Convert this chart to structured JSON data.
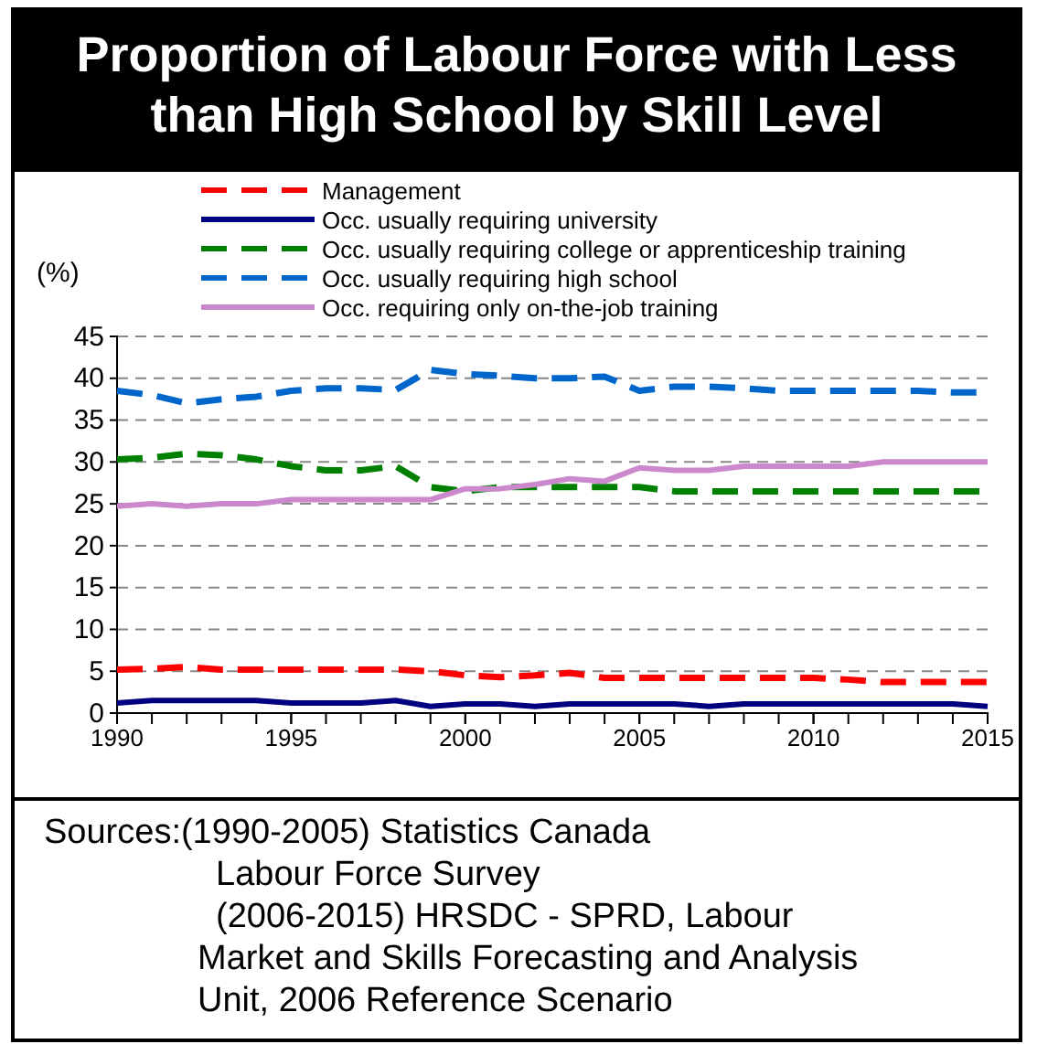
{
  "chart_data": {
    "type": "line",
    "title": "Proportion of Labour Force with Less than High School by Skill Level",
    "ylabel": "(%)",
    "x": [
      1990,
      1991,
      1992,
      1993,
      1994,
      1995,
      1996,
      1997,
      1998,
      1999,
      2000,
      2001,
      2002,
      2003,
      2004,
      2005,
      2006,
      2007,
      2008,
      2009,
      2010,
      2011,
      2012,
      2013,
      2014,
      2015
    ],
    "xlim": [
      1990,
      2015
    ],
    "xticks": [
      1990,
      1995,
      2000,
      2005,
      2010,
      2015
    ],
    "ylim": [
      0,
      45
    ],
    "yticks": [
      0,
      5,
      10,
      15,
      20,
      25,
      30,
      35,
      40,
      45
    ],
    "grid": "y",
    "legend": "top",
    "marker": "none",
    "series": [
      {
        "name": "Management",
        "color": "#ff0000",
        "line_style": "dashed",
        "values": [
          5.2,
          5.3,
          5.5,
          5.2,
          5.2,
          5.2,
          5.2,
          5.2,
          5.2,
          5,
          4.5,
          4.3,
          4.5,
          4.8,
          4.2,
          4.2,
          4.2,
          4.2,
          4.2,
          4.2,
          4.2,
          4,
          3.7,
          3.7,
          3.7,
          3.7
        ]
      },
      {
        "name": "Occ. usually requiring university",
        "color": "#000080",
        "line_style": "solid",
        "values": [
          1.2,
          1.5,
          1.5,
          1.5,
          1.5,
          1.2,
          1.2,
          1.2,
          1.5,
          0.8,
          1.1,
          1.1,
          0.8,
          1.1,
          1.1,
          1.1,
          1.1,
          0.8,
          1.1,
          1.1,
          1.1,
          1.1,
          1.1,
          1.1,
          1.1,
          0.8
        ]
      },
      {
        "name": "Occ. usually requiring college or apprenticeship training",
        "color": "#008000",
        "line_style": "dashed",
        "values": [
          30.3,
          30.5,
          31,
          30.8,
          30.3,
          29.5,
          29,
          29,
          29.5,
          27,
          26.5,
          27,
          27,
          27,
          27,
          27,
          26.5,
          26.5,
          26.5,
          26.5,
          26.5,
          26.5,
          26.5,
          26.5,
          26.5,
          26.5
        ]
      },
      {
        "name": "Occ. usually requiring high school",
        "color": "#0066cc",
        "line_style": "dashed",
        "values": [
          38.5,
          38,
          37,
          37.5,
          37.8,
          38.5,
          38.8,
          38.8,
          38.6,
          41,
          40.5,
          40.3,
          40,
          40,
          40.2,
          38.5,
          39,
          39,
          38.8,
          38.5,
          38.5,
          38.5,
          38.5,
          38.5,
          38.3,
          38.3
        ]
      },
      {
        "name": "Occ. requiring only on-the-job training",
        "color": "#cc88cc",
        "line_style": "solid",
        "values": [
          24.7,
          25,
          24.7,
          25,
          25,
          25.5,
          25.5,
          25.5,
          25.5,
          25.5,
          26.8,
          26.8,
          27.3,
          28,
          27.7,
          29.3,
          29,
          29,
          29.5,
          29.5,
          29.5,
          29.5,
          30,
          30,
          30,
          30
        ]
      }
    ],
    "annotations": [
      "Sources:(1990-2005)  Statistics Canada",
      "Labour Force Survey",
      "(2006-2015)  HRSDC - SPRD, Labour",
      "Market and Skills Forecasting and Analysis",
      "Unit, 2006 Reference Scenario"
    ]
  }
}
